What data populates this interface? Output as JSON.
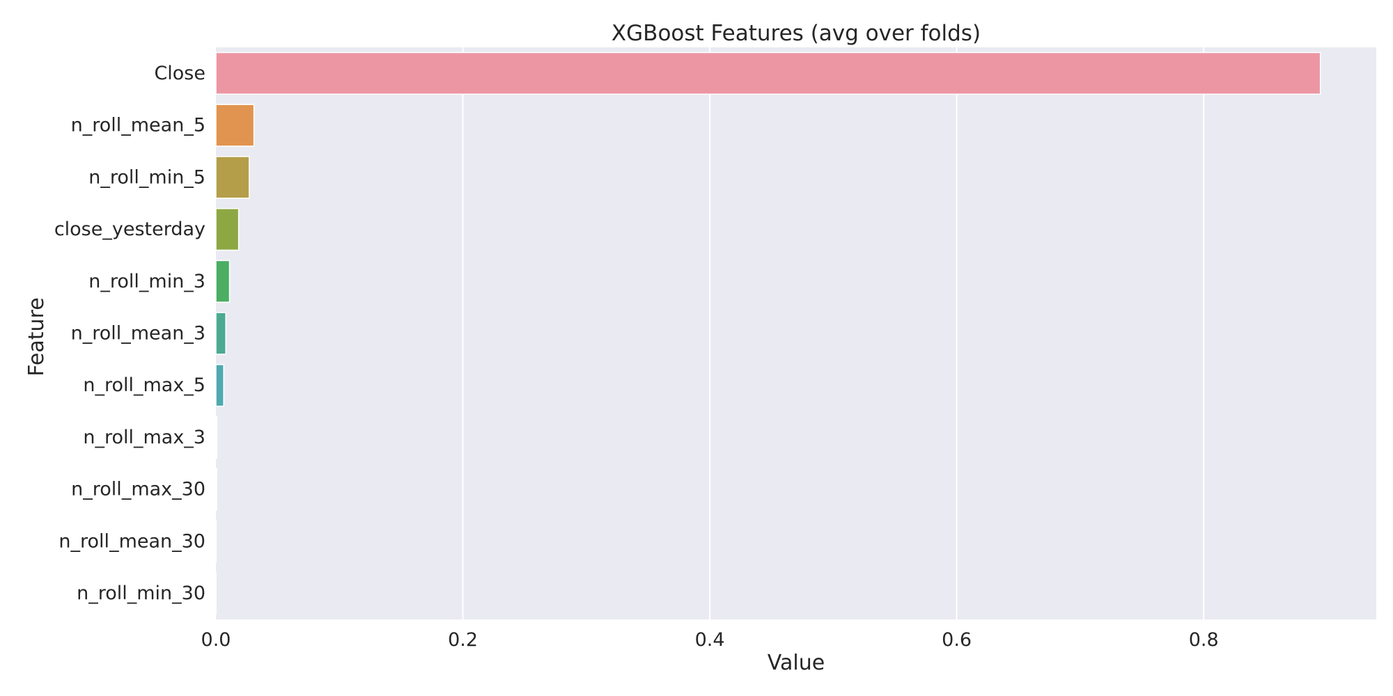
{
  "chart_data": {
    "type": "bar",
    "orientation": "horizontal",
    "title": "XGBoost Features (avg over folds)",
    "xlabel": "Value",
    "ylabel": "Feature",
    "xlim": [
      0,
      0.9398
    ],
    "xticks": [
      0.0,
      0.2,
      0.4,
      0.6,
      0.8
    ],
    "xtick_labels": [
      "0.0",
      "0.2",
      "0.4",
      "0.6",
      "0.8"
    ],
    "grid": true,
    "categories": [
      "Close",
      "n_roll_mean_5",
      "n_roll_min_5",
      "close_yesterday",
      "n_roll_min_3",
      "n_roll_mean_3",
      "n_roll_max_5",
      "n_roll_max_3",
      "n_roll_max_30",
      "n_roll_mean_30",
      "n_roll_min_30"
    ],
    "values": [
      0.8945,
      0.0308,
      0.027,
      0.0184,
      0.011,
      0.008,
      0.0063,
      0.0008,
      0.0006,
      0.0002,
      0.0001
    ],
    "colors": [
      "#ec96a3",
      "#e0944f",
      "#b49e49",
      "#8da843",
      "#4bae62",
      "#4daa92",
      "#4ea9b0",
      "#54a8d0",
      "#a3a0e8",
      "#df8de9",
      "#ea93c8"
    ]
  }
}
